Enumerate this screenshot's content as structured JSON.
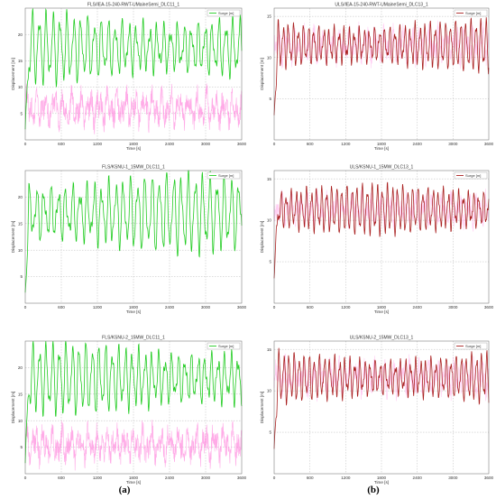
{
  "captions": {
    "left": "(a)",
    "right": "(b)"
  },
  "chart_data": [
    {
      "panel": "FLS-1",
      "type": "line",
      "title": "FLS/IEA-15-240-RWT-UMaineSemi_DLC11_1",
      "xlabel": "Time [s]",
      "ylabel": "Displacement [m]",
      "xlim": [
        0,
        3600
      ],
      "ylim": [
        0,
        25
      ],
      "xticks": [
        0,
        600,
        1200,
        1800,
        2400,
        3000,
        3600
      ],
      "yticks": [
        5,
        10,
        15,
        20
      ],
      "grid": true,
      "legend_position": "top-right",
      "series": [
        {
          "name": "Surge [m]",
          "color": "#22cc22",
          "mean": 17.5,
          "amplitude": 4.5,
          "period_s": 115,
          "start_value": 2
        }
      ],
      "background_series": {
        "color": "#ff88dd",
        "mean": 6,
        "amplitude": 3
      }
    },
    {
      "panel": "ULS-1",
      "type": "line",
      "title": "ULS/IEA-15-240-RWT-UMaineSemi_DLC13_1",
      "xlabel": "Time [s]",
      "ylabel": "Displacement [m]",
      "xlim": [
        0,
        3600
      ],
      "ylim": [
        0,
        16
      ],
      "xticks": [
        0,
        600,
        1200,
        1800,
        2400,
        3000,
        3600
      ],
      "yticks": [
        5,
        10,
        15
      ],
      "grid": true,
      "legend_position": "top-right",
      "series": [
        {
          "name": "Surge [m]",
          "color": "#aa2222",
          "mean": 11.5,
          "amplitude": 2.1,
          "period_s": 85,
          "start_value": 3
        }
      ],
      "background_series": {
        "color": "#ffbbee",
        "mean": 11.5,
        "amplitude": 1.8
      }
    },
    {
      "panel": "FLS-2",
      "type": "line",
      "title": "FLS/KSNU-1_15MW_DLC11_1",
      "xlabel": "Time [s]",
      "ylabel": "Displacement [m]",
      "xlim": [
        0,
        3600
      ],
      "ylim": [
        0,
        25
      ],
      "xticks": [
        0,
        600,
        1200,
        1800,
        2400,
        3000,
        3600
      ],
      "yticks": [
        5,
        10,
        15,
        20
      ],
      "grid": true,
      "legend_position": "top-right",
      "series": [
        {
          "name": "Surge [m]",
          "color": "#22cc22",
          "mean": 17,
          "amplitude": 5,
          "period_s": 120,
          "start_value": 2
        }
      ],
      "background_series": null
    },
    {
      "panel": "ULS-2",
      "type": "line",
      "title": "ULS/KSNU-1_15MW_DLC13_1",
      "xlabel": "Time [s]",
      "ylabel": "Displacement [m]",
      "xlim": [
        0,
        3600
      ],
      "ylim": [
        0,
        16
      ],
      "xticks": [
        0,
        600,
        1200,
        1800,
        2400,
        3000,
        3600
      ],
      "yticks": [
        5,
        10,
        15
      ],
      "grid": true,
      "legend_position": "top-right",
      "series": [
        {
          "name": "Surge [m]",
          "color": "#aa2222",
          "mean": 11.3,
          "amplitude": 2.0,
          "period_s": 85,
          "start_value": 3
        }
      ],
      "background_series": {
        "color": "#ffbbee",
        "mean": 11.3,
        "amplitude": 1.6
      }
    },
    {
      "panel": "FLS-3",
      "type": "line",
      "title": "FLS/KSNU-2_15MW_DLC11_1",
      "xlabel": "Time [s]",
      "ylabel": "Displacement [m]",
      "xlim": [
        0,
        3600
      ],
      "ylim": [
        0,
        25
      ],
      "xticks": [
        0,
        600,
        1200,
        1800,
        2400,
        3000,
        3600
      ],
      "yticks": [
        5,
        10,
        15,
        20
      ],
      "grid": true,
      "legend_position": "top-right",
      "series": [
        {
          "name": "Surge [m]",
          "color": "#22cc22",
          "mean": 18,
          "amplitude": 4.5,
          "period_s": 110,
          "start_value": 2
        }
      ],
      "background_series": {
        "color": "#ff88dd",
        "mean": 5.5,
        "amplitude": 3
      }
    },
    {
      "panel": "ULS-3",
      "type": "line",
      "title": "ULS/KSNU-2_15MW_DLC13_1",
      "xlabel": "Time [s]",
      "ylabel": "Displacement [m]",
      "xlim": [
        0,
        3600
      ],
      "ylim": [
        0,
        16
      ],
      "xticks": [
        0,
        600,
        1200,
        1800,
        2400,
        3000,
        3600
      ],
      "yticks": [
        5,
        10,
        15
      ],
      "grid": true,
      "legend_position": "top-right",
      "series": [
        {
          "name": "Surge [m]",
          "color": "#aa2222",
          "mean": 11.6,
          "amplitude": 2.1,
          "period_s": 85,
          "start_value": 3
        }
      ],
      "background_series": {
        "color": "#ffbbee",
        "mean": 11.6,
        "amplitude": 1.8
      }
    }
  ]
}
